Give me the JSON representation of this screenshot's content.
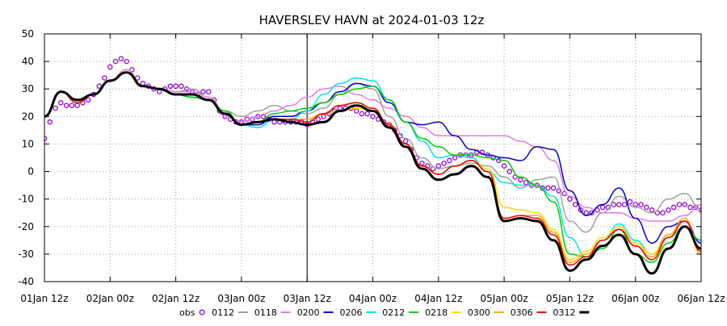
{
  "chart_data": {
    "type": "line",
    "title": "HAVERSLEV HAVN at 2024-01-03 12z",
    "xlabel": "",
    "ylabel": "",
    "ylim": [
      -40,
      50
    ],
    "yticks": [
      50,
      40,
      30,
      20,
      10,
      0,
      -10,
      -20,
      -30,
      -40
    ],
    "xlim": [
      0,
      120
    ],
    "x_unit": "hours since 01Jan 12z",
    "xticks": [
      {
        "x": 0,
        "label": "01Jan 12z"
      },
      {
        "x": 12,
        "label": "02Jan 00z"
      },
      {
        "x": 24,
        "label": "02Jan 12z"
      },
      {
        "x": 36,
        "label": "03Jan 00z"
      },
      {
        "x": 48,
        "label": "03Jan 12z"
      },
      {
        "x": 60,
        "label": "04Jan 00z"
      },
      {
        "x": 72,
        "label": "04Jan 12z"
      },
      {
        "x": 84,
        "label": "05Jan 00z"
      },
      {
        "x": 96,
        "label": "05Jan 12z"
      },
      {
        "x": 108,
        "label": "06Jan 00z"
      },
      {
        "x": 120,
        "label": "06Jan 12z"
      }
    ],
    "analysis_time_x": 48,
    "grid": true,
    "legend_position": "bottom",
    "series": [
      {
        "name": "obs",
        "color": "#9400d3",
        "style": "markers",
        "x": [
          0,
          1,
          2,
          3,
          4,
          5,
          6,
          7,
          8,
          9,
          10,
          11,
          12,
          13,
          14,
          15,
          16,
          17,
          18,
          19,
          20,
          21,
          22,
          23,
          24,
          25,
          26,
          27,
          28,
          29,
          30,
          31,
          32,
          33,
          34,
          35,
          36,
          37,
          38,
          39,
          40,
          41,
          42,
          43,
          44,
          45,
          46,
          47,
          48,
          49,
          50,
          51,
          52,
          53,
          54,
          55,
          56,
          57,
          58,
          59,
          60,
          61,
          62,
          63,
          64,
          65,
          66,
          67,
          68,
          69,
          70,
          71,
          72,
          73,
          74,
          75,
          76,
          77,
          78,
          79,
          80,
          81,
          82,
          83,
          84,
          85,
          86,
          87,
          88,
          89,
          90,
          91,
          92,
          93,
          94,
          95,
          96,
          97,
          98,
          99,
          100,
          101,
          102,
          103,
          104,
          105,
          106,
          107,
          108,
          109,
          110,
          111,
          112,
          113,
          114,
          115,
          116,
          117,
          118,
          119,
          120
        ],
        "values": [
          12,
          18,
          23,
          25,
          24,
          24,
          24,
          25,
          26,
          28,
          31,
          34,
          38,
          40,
          41,
          40,
          37,
          34,
          32,
          31,
          30,
          29,
          30,
          31,
          31,
          31,
          30,
          29,
          28,
          29,
          29,
          26,
          22,
          20,
          19,
          18,
          18,
          19,
          19,
          20,
          20,
          19,
          18,
          18,
          18,
          18,
          18,
          18,
          17,
          18,
          19,
          20,
          21,
          22,
          23,
          23,
          23,
          22,
          21,
          21,
          20,
          19,
          18,
          17,
          15,
          13,
          11,
          8,
          5,
          3,
          2,
          1,
          2,
          3,
          4,
          5,
          6,
          6,
          6,
          7,
          7,
          6,
          5,
          4,
          2,
          0,
          -2,
          -3,
          -4,
          -5,
          -5,
          -6,
          -6,
          -6,
          -7,
          -8,
          -10,
          -12,
          -14,
          -15,
          -15,
          -14,
          -13,
          -13,
          -12,
          -12,
          -12,
          -11,
          -12,
          -12,
          -13,
          -14,
          -15,
          -15,
          -14,
          -13,
          -12,
          -12,
          -13,
          -13,
          -14
        ]
      },
      {
        "name": "0112",
        "color": "#a0a0a0",
        "style": "line",
        "x": [
          0,
          3,
          6,
          9,
          12,
          15,
          18,
          21,
          24,
          27,
          30,
          33,
          36,
          39,
          42,
          45,
          48,
          51,
          54,
          57,
          60,
          63,
          66,
          69,
          72,
          75,
          78,
          81,
          84,
          87,
          90,
          93,
          96,
          99,
          102,
          105,
          108,
          111,
          114,
          117,
          120
        ],
        "values": [
          20,
          29,
          25,
          28,
          33,
          37,
          31,
          30,
          29,
          30,
          27,
          22,
          20,
          22,
          24,
          22,
          21,
          23,
          28,
          32,
          30,
          20,
          12,
          5,
          1,
          2,
          3,
          2,
          -2,
          -6,
          -3,
          -2,
          -18,
          -22,
          -15,
          -9,
          -13,
          -15,
          -10,
          -8,
          -14
        ]
      },
      {
        "name": "0118",
        "color": "#e07ce0",
        "style": "line",
        "x": [
          0,
          3,
          6,
          9,
          12,
          15,
          18,
          21,
          24,
          27,
          30,
          33,
          36,
          39,
          42,
          45,
          48,
          51,
          54,
          57,
          60,
          63,
          66,
          69,
          72,
          75,
          78,
          81,
          84,
          87,
          90,
          93,
          96,
          99,
          102,
          105,
          108,
          111,
          114,
          117,
          120
        ],
        "values": [
          20,
          29,
          25,
          28,
          33,
          37,
          31,
          30,
          29,
          29,
          27,
          20,
          18,
          20,
          22,
          24,
          27,
          30,
          31,
          28,
          26,
          23,
          20,
          16,
          13,
          13,
          13,
          13,
          13,
          11,
          9,
          4,
          -9,
          -13,
          -15,
          -15,
          -17,
          -18,
          -18,
          -16,
          -12
        ]
      },
      {
        "name": "0200",
        "color": "#0000cd",
        "style": "line",
        "x": [
          0,
          3,
          6,
          9,
          12,
          15,
          18,
          21,
          24,
          27,
          30,
          33,
          36,
          39,
          42,
          45,
          48,
          51,
          54,
          57,
          60,
          63,
          66,
          69,
          72,
          75,
          78,
          81,
          84,
          87,
          90,
          93,
          96,
          99,
          102,
          105,
          108,
          111,
          114,
          117,
          120
        ],
        "values": [
          20,
          29,
          25,
          28,
          33,
          36,
          31,
          30,
          28,
          27,
          26,
          22,
          17,
          17,
          20,
          20,
          22,
          25,
          29,
          32,
          31,
          25,
          18,
          17,
          18,
          13,
          8,
          6,
          5,
          4,
          9,
          8,
          -7,
          -16,
          -12,
          -6,
          -17,
          -26,
          -20,
          -18,
          -26
        ]
      },
      {
        "name": "0206",
        "color": "#00e5ee",
        "style": "line",
        "x": [
          0,
          3,
          6,
          9,
          12,
          15,
          18,
          21,
          24,
          27,
          30,
          33,
          36,
          39,
          42,
          45,
          48,
          51,
          54,
          57,
          60,
          63,
          66,
          69,
          72,
          75,
          78,
          81,
          84,
          87,
          90,
          93,
          96,
          99,
          102,
          105,
          108,
          111,
          114,
          117,
          120
        ],
        "values": [
          20,
          29,
          25,
          28,
          33,
          36,
          31,
          30,
          28,
          27,
          26,
          22,
          17,
          16,
          19,
          19,
          22,
          28,
          32,
          34,
          33,
          26,
          18,
          11,
          5,
          6,
          5,
          0,
          -4,
          -5,
          -5,
          -9,
          -24,
          -31,
          -25,
          -19,
          -25,
          -30,
          -24,
          -20,
          -25
        ]
      },
      {
        "name": "0212",
        "color": "#00cd00",
        "style": "line",
        "x": [
          0,
          3,
          6,
          9,
          12,
          15,
          18,
          21,
          24,
          27,
          30,
          33,
          36,
          39,
          42,
          45,
          48,
          51,
          54,
          57,
          60,
          63,
          66,
          69,
          72,
          75,
          78,
          81,
          84,
          87,
          90,
          93,
          96,
          99,
          102,
          105,
          108,
          111,
          114,
          117,
          120
        ],
        "values": [
          20,
          29,
          25,
          28,
          33,
          36,
          31,
          30,
          28,
          27,
          26,
          22,
          17,
          18,
          21,
          22,
          23,
          25,
          28,
          30,
          31,
          26,
          18,
          12,
          9,
          6,
          6,
          5,
          4,
          -2,
          -5,
          -11,
          -30,
          -31,
          -28,
          -21,
          -30,
          -33,
          -26,
          -20,
          -25
        ]
      },
      {
        "name": "0218",
        "color": "#ffd700",
        "style": "line",
        "x": [
          0,
          3,
          6,
          9,
          12,
          15,
          18,
          21,
          24,
          27,
          30,
          33,
          36,
          39,
          42,
          45,
          48,
          51,
          54,
          57,
          60,
          63,
          66,
          69,
          72,
          75,
          78,
          81,
          84,
          87,
          90,
          93,
          96,
          99,
          102,
          105,
          108,
          111,
          114,
          117,
          120
        ],
        "values": [
          20,
          29,
          25,
          28,
          33,
          36,
          31,
          30,
          28,
          28,
          26,
          21,
          17,
          18,
          19,
          19,
          19,
          21,
          22,
          23,
          22,
          17,
          9,
          2,
          -1,
          2,
          4,
          1,
          -13,
          -14,
          -15,
          -21,
          -32,
          -29,
          -24,
          -20,
          -26,
          -30,
          -23,
          -18,
          -28
        ]
      },
      {
        "name": "0300",
        "color": "#ffa500",
        "style": "line",
        "x": [
          0,
          3,
          6,
          9,
          12,
          15,
          18,
          21,
          24,
          27,
          30,
          33,
          36,
          39,
          42,
          45,
          48,
          51,
          54,
          57,
          60,
          63,
          66,
          69,
          72,
          75,
          78,
          81,
          84,
          87,
          90,
          93,
          96,
          99,
          102,
          105,
          108,
          111,
          114,
          117,
          120
        ],
        "values": [
          20,
          29,
          25,
          28,
          33,
          36,
          31,
          30,
          28,
          28,
          26,
          21,
          17,
          18,
          19,
          19,
          19,
          21,
          24,
          25,
          23,
          17,
          10,
          2,
          -1,
          2,
          4,
          0,
          -17,
          -16,
          -16,
          -22,
          -33,
          -30,
          -25,
          -21,
          -27,
          -31,
          -23,
          -17,
          -30
        ]
      },
      {
        "name": "0306",
        "color": "#ee0000",
        "style": "line",
        "x": [
          0,
          3,
          6,
          9,
          12,
          15,
          18,
          21,
          24,
          27,
          30,
          33,
          36,
          39,
          42,
          45,
          48,
          51,
          54,
          57,
          60,
          63,
          66,
          69,
          72,
          75,
          78,
          81,
          84,
          87,
          90,
          93,
          96,
          99,
          102,
          105,
          108,
          111,
          114,
          117,
          120
        ],
        "values": [
          20,
          29,
          25,
          28,
          33,
          36,
          31,
          30,
          28,
          28,
          26,
          21,
          17,
          18,
          19,
          19,
          18,
          21,
          24,
          25,
          23,
          17,
          10,
          2,
          -1,
          2,
          4,
          0,
          -17,
          -16,
          -17,
          -23,
          -34,
          -31,
          -25,
          -21,
          -27,
          -32,
          -24,
          -18,
          -29
        ]
      },
      {
        "name": "0312",
        "color": "#000000",
        "style": "thick-line",
        "x": [
          0,
          3,
          6,
          9,
          12,
          15,
          18,
          21,
          24,
          27,
          30,
          33,
          36,
          39,
          42,
          45,
          48,
          51,
          54,
          57,
          60,
          63,
          66,
          69,
          72,
          75,
          78,
          81,
          84,
          87,
          90,
          93,
          96,
          99,
          102,
          105,
          108,
          111,
          114,
          117,
          120
        ],
        "values": [
          20,
          29,
          26,
          28,
          33,
          36,
          31,
          30,
          28,
          28,
          26,
          21,
          17,
          18,
          19,
          18,
          17,
          18,
          22,
          24,
          22,
          16,
          9,
          1,
          -3,
          -1,
          2,
          -2,
          -18,
          -17,
          -18,
          -25,
          -36,
          -32,
          -27,
          -23,
          -30,
          -37,
          -28,
          -20,
          -28
        ]
      }
    ]
  }
}
